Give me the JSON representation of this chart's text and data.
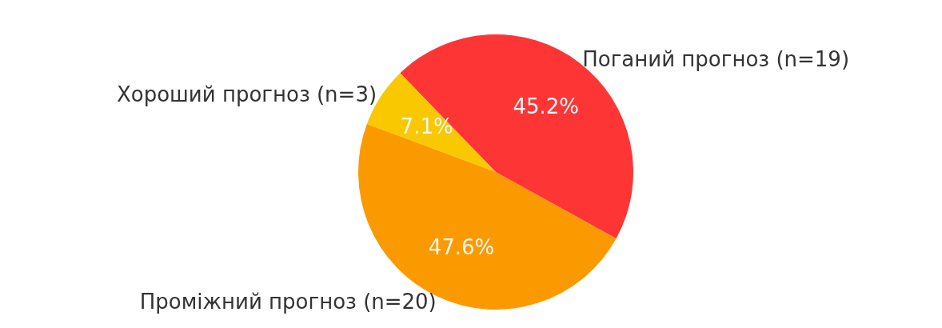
{
  "chart_data": {
    "type": "pie",
    "categories": [
      "Хороший прогноз (n=3)",
      "Проміжний прогноз (n=20)",
      "Поганий прогноз (n=19)"
    ],
    "values": [
      7.1,
      47.6,
      45.2
    ],
    "value_labels": [
      "7.1%",
      "47.6%",
      "45.2%"
    ],
    "colors": [
      "#f9c800",
      "#fa9a00",
      "#fd3535"
    ],
    "legend": false
  }
}
